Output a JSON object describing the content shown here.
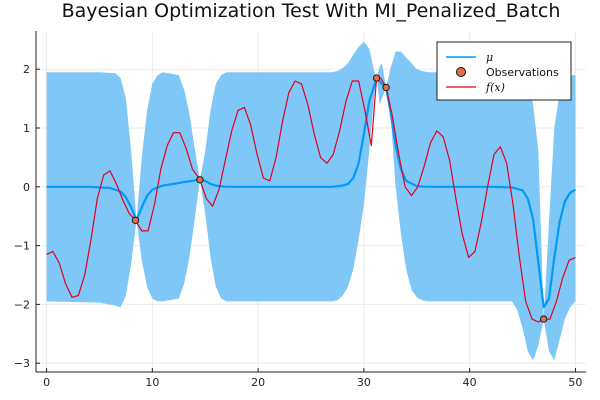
{
  "chart_data": {
    "type": "line",
    "title": "Bayesian Optimization Test With MI_Penalized_Batch",
    "xlabel": "",
    "ylabel": "",
    "xlim": [
      -1,
      51
    ],
    "ylim": [
      -3.15,
      2.65
    ],
    "xticks": [
      0,
      10,
      20,
      30,
      40,
      50
    ],
    "yticks": [
      -3,
      -2,
      -1,
      0,
      1,
      2
    ],
    "x_tick_labels": [
      "0",
      "10",
      "20",
      "30",
      "40",
      "50"
    ],
    "y_tick_labels": [
      "−3",
      "−2",
      "−1",
      "0",
      "1",
      "2"
    ],
    "grid": true,
    "legend_position": "top-right",
    "colors": {
      "band": "#7fc7f7",
      "mean": "#009af9",
      "observations": "#e26f46",
      "f": "#e3001a",
      "axis": "#222222",
      "grid": "#ebebeb"
    },
    "series": [
      {
        "name": "μ",
        "kind": "mean",
        "x": [
          0,
          2,
          4,
          6,
          7,
          7.5,
          8,
          8.5,
          9,
          9.5,
          10,
          10.5,
          11,
          12,
          13,
          14.5,
          15,
          15.5,
          16,
          17,
          18,
          20,
          22,
          24,
          26,
          27,
          28,
          28.5,
          29,
          29.5,
          30,
          30.5,
          31.2,
          31.7,
          32.1,
          32.5,
          33,
          33.5,
          34,
          35,
          36,
          38,
          40,
          42,
          44,
          45,
          45.5,
          46,
          46.5,
          47,
          47.5,
          48,
          48.5,
          49,
          49.5,
          50
        ],
        "y": [
          0,
          0,
          0,
          -0.02,
          -0.08,
          -0.18,
          -0.35,
          -0.57,
          -0.35,
          -0.15,
          -0.05,
          -0.01,
          0.02,
          0.05,
          0.08,
          0.12,
          0.1,
          0.05,
          0.02,
          0,
          0,
          0,
          0,
          0,
          0,
          0,
          0.02,
          0.05,
          0.15,
          0.4,
          0.9,
          1.45,
          1.85,
          1.75,
          1.69,
          1.3,
          0.7,
          0.3,
          0.1,
          0.01,
          0,
          0,
          0,
          0,
          -0.01,
          -0.06,
          -0.2,
          -0.55,
          -1.3,
          -2.05,
          -1.9,
          -1.2,
          -0.6,
          -0.25,
          -0.1,
          -0.05
        ]
      },
      {
        "name": "μ ± band",
        "kind": "band",
        "x": [
          0,
          5,
          6.5,
          7,
          7.5,
          8,
          8.5,
          9,
          9.5,
          10,
          10.5,
          11,
          12.5,
          13,
          13.5,
          14,
          14.5,
          15,
          15.5,
          16,
          16.5,
          17,
          17.5,
          18,
          27,
          27.5,
          28,
          28.5,
          29,
          29.5,
          30,
          30.5,
          31,
          31.2,
          31.5,
          31.7,
          32.1,
          32.5,
          33,
          33.5,
          34,
          34.5,
          35,
          35.5,
          36,
          44,
          44.5,
          45,
          45.5,
          46,
          46.5,
          47,
          47.5,
          48,
          48.5,
          49,
          49.5,
          50
        ],
        "upper": [
          1.95,
          1.95,
          1.93,
          1.85,
          1.5,
          0.6,
          -0.57,
          0.5,
          1.3,
          1.75,
          1.9,
          1.95,
          1.9,
          1.65,
          1.25,
          0.65,
          0.12,
          0.6,
          1.3,
          1.75,
          1.9,
          1.95,
          1.95,
          1.95,
          1.95,
          1.97,
          2.02,
          2.1,
          2.25,
          2.38,
          2.47,
          2.35,
          1.95,
          1.85,
          2.05,
          2.1,
          1.69,
          2.0,
          2.3,
          2.3,
          2.2,
          2.1,
          2.0,
          1.97,
          1.95,
          1.95,
          1.93,
          1.9,
          1.75,
          1.4,
          0.6,
          -2.25,
          -0.6,
          1.0,
          1.6,
          1.85,
          1.9,
          1.9
        ],
        "lower": [
          -1.95,
          -1.97,
          -2.02,
          -2.05,
          -1.85,
          -1.3,
          -0.57,
          -1.25,
          -1.7,
          -1.9,
          -1.95,
          -1.95,
          -1.9,
          -1.65,
          -1.2,
          -0.55,
          0.12,
          -0.45,
          -1.2,
          -1.7,
          -1.9,
          -1.95,
          -1.95,
          -1.95,
          -1.95,
          -1.93,
          -1.85,
          -1.7,
          -1.4,
          -0.9,
          -0.3,
          0.6,
          1.6,
          1.85,
          1.4,
          1.5,
          1.69,
          1.3,
          0.0,
          -0.8,
          -1.4,
          -1.75,
          -1.88,
          -1.93,
          -1.95,
          -1.95,
          -2.1,
          -2.4,
          -2.8,
          -2.95,
          -2.7,
          -2.25,
          -2.8,
          -2.95,
          -2.6,
          -2.25,
          -2.05,
          -1.95
        ]
      },
      {
        "name": "Observations",
        "kind": "scatter",
        "x": [
          8.4,
          14.5,
          31.2,
          32.1,
          47.0
        ],
        "y": [
          -0.57,
          0.12,
          1.85,
          1.69,
          -2.25
        ]
      },
      {
        "name": "f(x)",
        "kind": "line",
        "x": [
          0,
          0.6,
          1.2,
          1.8,
          2.4,
          3.0,
          3.6,
          4.2,
          4.8,
          5.4,
          6.0,
          6.6,
          7.2,
          7.8,
          8.4,
          9.0,
          9.6,
          10.2,
          10.8,
          11.4,
          12.0,
          12.6,
          13.2,
          13.8,
          14.5,
          15.1,
          15.7,
          16.3,
          16.9,
          17.5,
          18.1,
          18.7,
          19.3,
          19.9,
          20.5,
          21.1,
          21.7,
          22.3,
          22.9,
          23.5,
          24.1,
          24.7,
          25.3,
          25.9,
          26.5,
          27.1,
          27.7,
          28.3,
          28.9,
          29.5,
          30.1,
          30.7,
          31.2,
          31.6,
          32.1,
          32.7,
          33.3,
          33.9,
          34.5,
          35.1,
          35.7,
          36.3,
          36.9,
          37.5,
          38.1,
          38.7,
          39.3,
          39.9,
          40.5,
          41.1,
          41.7,
          42.3,
          42.9,
          43.5,
          44.1,
          44.7,
          45.3,
          45.9,
          46.5,
          47.0,
          47.6,
          48.2,
          48.8,
          49.4,
          50.0
        ],
        "y": [
          -1.15,
          -1.1,
          -1.3,
          -1.65,
          -1.88,
          -1.85,
          -1.5,
          -0.9,
          -0.2,
          0.2,
          0.27,
          0.05,
          -0.22,
          -0.45,
          -0.57,
          -0.75,
          -0.75,
          -0.3,
          0.3,
          0.7,
          0.92,
          0.92,
          0.65,
          0.3,
          0.12,
          -0.2,
          -0.33,
          -0.05,
          0.45,
          0.95,
          1.3,
          1.35,
          1.05,
          0.55,
          0.15,
          0.1,
          0.5,
          1.1,
          1.6,
          1.8,
          1.75,
          1.4,
          0.9,
          0.5,
          0.4,
          0.55,
          0.95,
          1.45,
          1.8,
          1.8,
          1.3,
          0.7,
          1.85,
          1.85,
          1.69,
          1.2,
          0.55,
          0.0,
          -0.15,
          0.0,
          0.35,
          0.75,
          0.95,
          0.85,
          0.45,
          -0.2,
          -0.8,
          -1.2,
          -1.1,
          -0.6,
          0.0,
          0.55,
          0.68,
          0.4,
          -0.3,
          -1.2,
          -1.95,
          -2.25,
          -2.3,
          -2.25,
          -2.25,
          -1.95,
          -1.55,
          -1.25,
          -1.2
        ]
      }
    ]
  }
}
